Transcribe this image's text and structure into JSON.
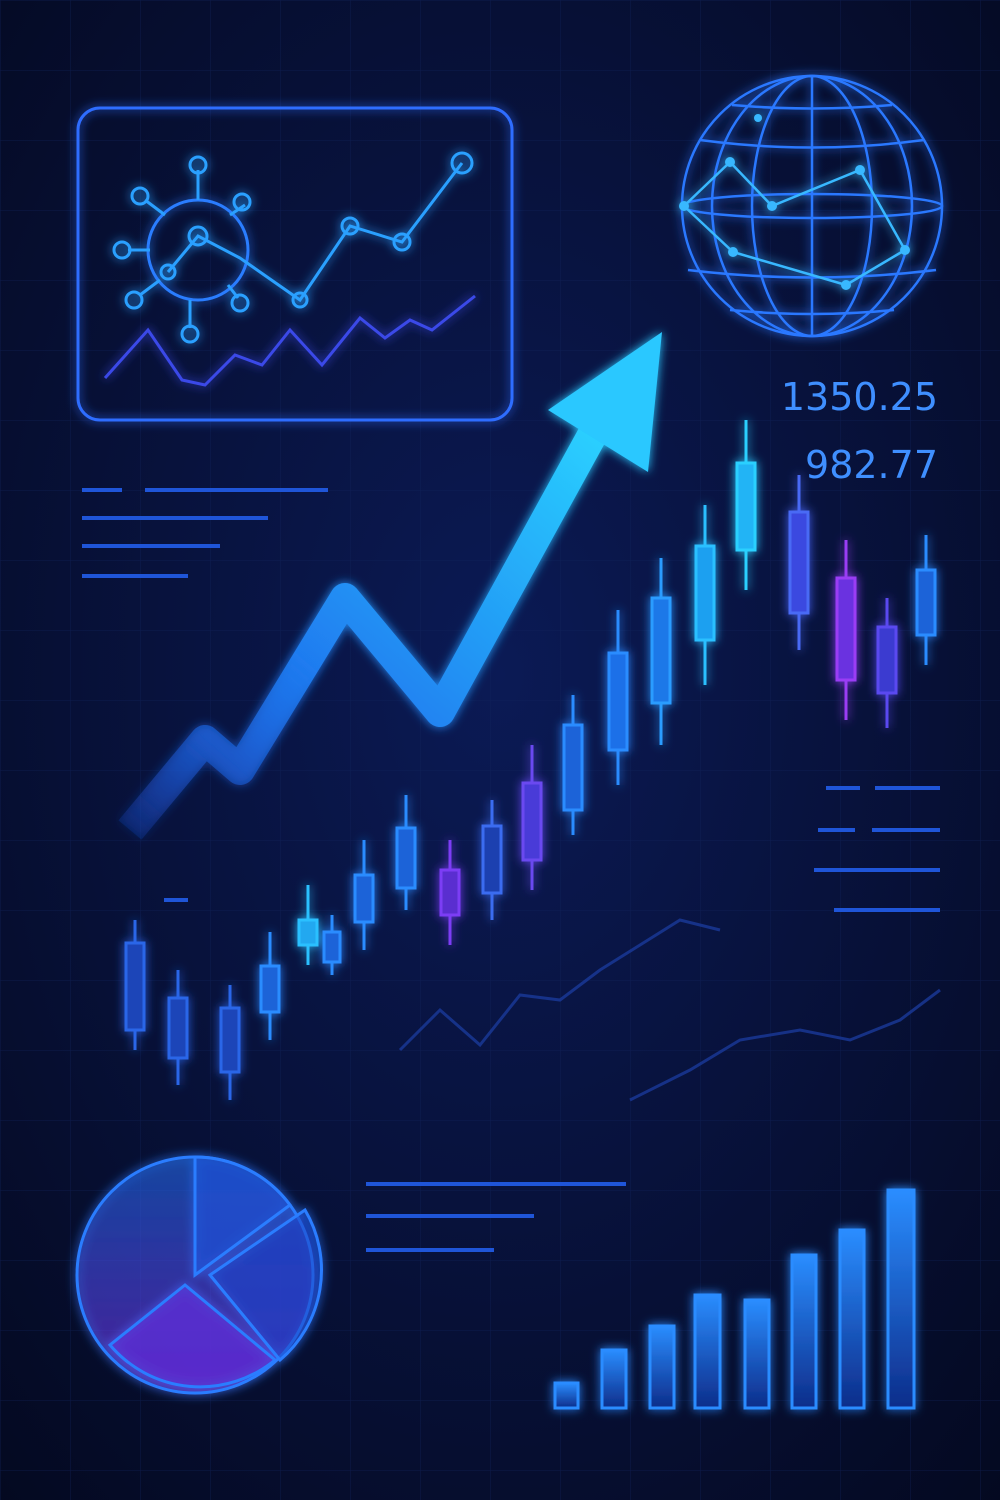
{
  "readouts": [
    "1350.25",
    "982.77"
  ]
}
